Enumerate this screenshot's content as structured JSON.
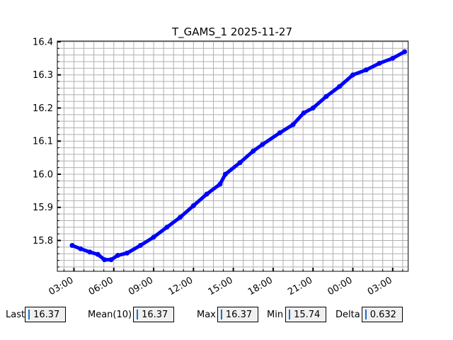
{
  "chart_data": {
    "type": "line",
    "title": "T_GAMS_1 2025-11-27",
    "xlabel": "",
    "ylabel": "",
    "ylim": [
      15.707,
      16.402
    ],
    "xlim": [
      "2025-11-27T01:45",
      "2025-11-28T04:10"
    ],
    "yticks": [
      "15.8",
      "15.9",
      "16.0",
      "16.1",
      "16.2",
      "16.3",
      "16.4"
    ],
    "xticks": [
      "03:00",
      "06:00",
      "09:00",
      "12:00",
      "15:00",
      "18:00",
      "21:00",
      "00:00",
      "03:00"
    ],
    "grid": true,
    "color": "#0000ff",
    "series": [
      {
        "x": [
          "2025-11-27T02:52",
          "2025-11-27T03:30",
          "2025-11-27T04:12",
          "2025-11-27T04:48",
          "2025-11-27T05:18",
          "2025-11-27T05:48",
          "2025-11-27T06:18",
          "2025-11-27T07:00",
          "2025-11-27T08:00",
          "2025-11-27T09:00",
          "2025-11-27T10:00",
          "2025-11-27T11:00",
          "2025-11-27T12:00",
          "2025-11-27T13:00",
          "2025-11-27T14:00",
          "2025-11-27T14:24",
          "2025-11-27T15:30",
          "2025-11-27T16:30",
          "2025-11-27T17:12",
          "2025-11-27T18:30",
          "2025-11-27T19:30",
          "2025-11-27T20:18",
          "2025-11-27T21:00",
          "2025-11-27T22:00",
          "2025-11-27T23:00",
          "2025-11-28T00:00",
          "2025-11-28T01:00",
          "2025-11-28T02:00",
          "2025-11-28T03:00",
          "2025-11-28T03:54"
        ],
        "y": [
          15.785,
          15.775,
          15.765,
          15.758,
          15.742,
          15.742,
          15.755,
          15.762,
          15.785,
          15.81,
          15.84,
          15.87,
          15.905,
          15.94,
          15.97,
          16.0,
          16.035,
          16.07,
          16.09,
          16.125,
          16.15,
          16.185,
          16.2,
          16.235,
          16.265,
          16.3,
          16.315,
          16.335,
          16.35,
          16.37
        ]
      }
    ]
  },
  "stats": {
    "last": {
      "label": "Last",
      "value": "16.37"
    },
    "mean": {
      "label": "Mean(10)",
      "value": "16.37"
    },
    "max": {
      "label": "Max",
      "value": "16.37"
    },
    "min": {
      "label": "Min",
      "value": "15.74"
    },
    "delta": {
      "label": "Delta",
      "value": "0.632"
    }
  }
}
